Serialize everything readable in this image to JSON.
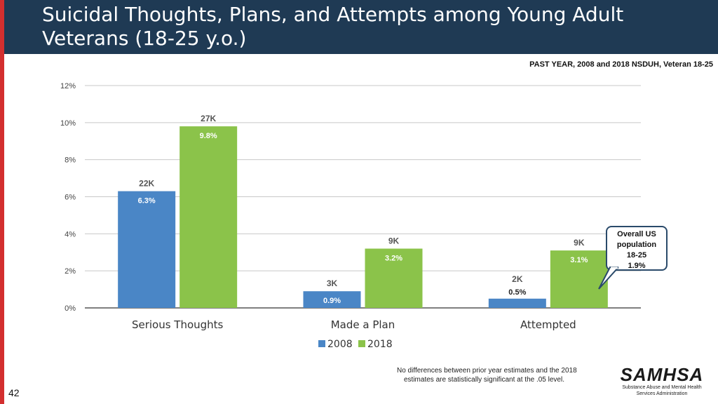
{
  "slide": {
    "title_line1": "Suicidal Thoughts, Plans, and Attempts among Young Adult",
    "title_line2": "Veterans (18-25 y.o.)",
    "source": "PAST YEAR, 2008 and 2018 NSDUH, Veteran 18-25",
    "callout": [
      "Overall US",
      "population",
      "18-25",
      "1.9%"
    ],
    "note_line1": "No differences between prior year estimates and the 2018",
    "note_line2": "estimates are statistically significant at the .05 level.",
    "logo_name": "SAMHSA",
    "logo_sub1": "Substance Abuse and Mental Health",
    "logo_sub2": "Services Administration",
    "page_number": "42",
    "colors": {
      "header": "#1f3a54",
      "accent": "#d32f2f",
      "series_2008": "#4a86c6",
      "series_2018": "#8bc34a"
    }
  },
  "chart_data": {
    "type": "bar",
    "title": "",
    "categories": [
      "Serious Thoughts",
      "Made a Plan",
      "Attempted"
    ],
    "series": [
      {
        "name": "2008",
        "color": "#4a86c6",
        "values": [
          6.3,
          0.9,
          0.5
        ],
        "pct_labels": [
          "6.3%",
          "0.9%",
          "0.5%"
        ],
        "count_labels": [
          "22K",
          "3K",
          "2K"
        ]
      },
      {
        "name": "2018",
        "color": "#8bc34a",
        "values": [
          9.8,
          3.2,
          3.1
        ],
        "pct_labels": [
          "9.8%",
          "3.2%",
          "3.1%"
        ],
        "count_labels": [
          "27K",
          "9K",
          "9K"
        ]
      }
    ],
    "ylim": [
      0,
      12
    ],
    "yticks": [
      0,
      2,
      4,
      6,
      8,
      10,
      12
    ],
    "ytick_labels": [
      "0%",
      "2%",
      "4%",
      "6%",
      "8%",
      "10%",
      "12%"
    ],
    "grid": true,
    "legend": "bottom-center"
  }
}
